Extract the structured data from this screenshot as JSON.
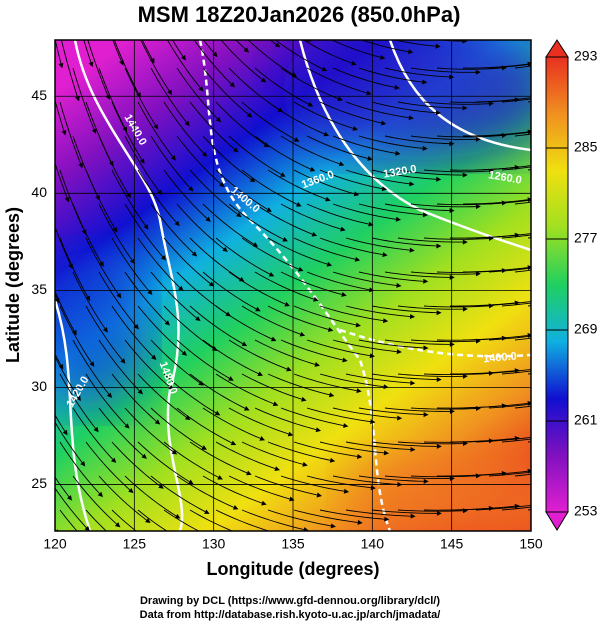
{
  "chart_data": {
    "type": "map",
    "title": "MSM 18Z20Jan2026 (850.0hPa)",
    "xlabel": "Longitude (degrees)",
    "ylabel": "Latitude  (degrees)",
    "xlim": [
      120,
      150
    ],
    "ylim": [
      22.6,
      47.9
    ],
    "xticks": [
      120,
      125,
      130,
      135,
      140,
      145,
      150
    ],
    "yticks": [
      25,
      30,
      35,
      40,
      45
    ],
    "grid": true,
    "colorbar": {
      "lim": [
        253,
        293
      ],
      "ticks": [
        253,
        261,
        269,
        277,
        285,
        293
      ],
      "colors": [
        "#e020d0",
        "#8010c0",
        "#1010d0",
        "#10b0e0",
        "#20d060",
        "#a0e020",
        "#f0e010",
        "#f09020",
        "#e83020"
      ]
    },
    "contour_labels": [
      "1440.0",
      "1400.0",
      "1360.0",
      "1320.0",
      "1260.0",
      "1400.0",
      "1420.0",
      "1480.0"
    ]
  },
  "footer": [
    "Drawing by DCL (https://www.gfd-dennou.org/library/dcl/)",
    "Data from http://database.rish.kyoto-u.ac.jp/arch/jmadata/"
  ]
}
